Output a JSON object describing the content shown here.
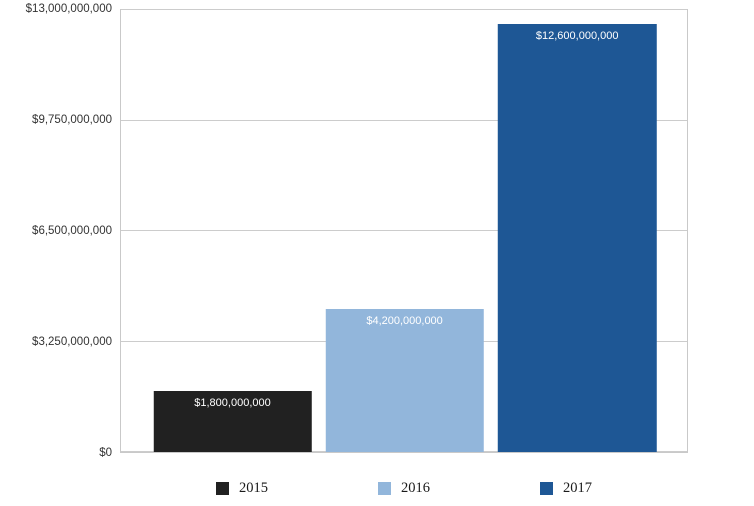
{
  "chart_data": {
    "type": "bar",
    "title": "",
    "xlabel": "",
    "ylabel": "",
    "categories": [
      "2015",
      "2016",
      "2017"
    ],
    "values": [
      1800000000,
      4200000000,
      12600000000
    ],
    "bar_labels": [
      "$1,800,000,000",
      "$4,200,000,000",
      "$12,600,000,000"
    ],
    "bar_colors": [
      "#212121",
      "#92B6DB",
      "#1E5795"
    ],
    "y_ticks": [
      {
        "label": "$0",
        "value": 0
      },
      {
        "label": "$3,250,000,000",
        "value": 3250000000
      },
      {
        "label": "$6,500,000,000",
        "value": 6500000000
      },
      {
        "label": "$9,750,000,000",
        "value": 9750000000
      },
      {
        "label": "$13,000,000,000",
        "value": 13000000000
      }
    ],
    "ylim": [
      0,
      13000000000
    ],
    "grid": true,
    "legend": {
      "position": "bottom",
      "items": [
        {
          "label": "2015",
          "color": "#212121"
        },
        {
          "label": "2016",
          "color": "#92B6DB"
        },
        {
          "label": "2017",
          "color": "#1E5795"
        }
      ]
    },
    "style": {
      "gridline_color": "#cccccc",
      "plot_border_color": "#c9c9c9",
      "tick_label_color": "#333333",
      "bar_label_color": "#ffffff",
      "background": "#ffffff"
    }
  }
}
